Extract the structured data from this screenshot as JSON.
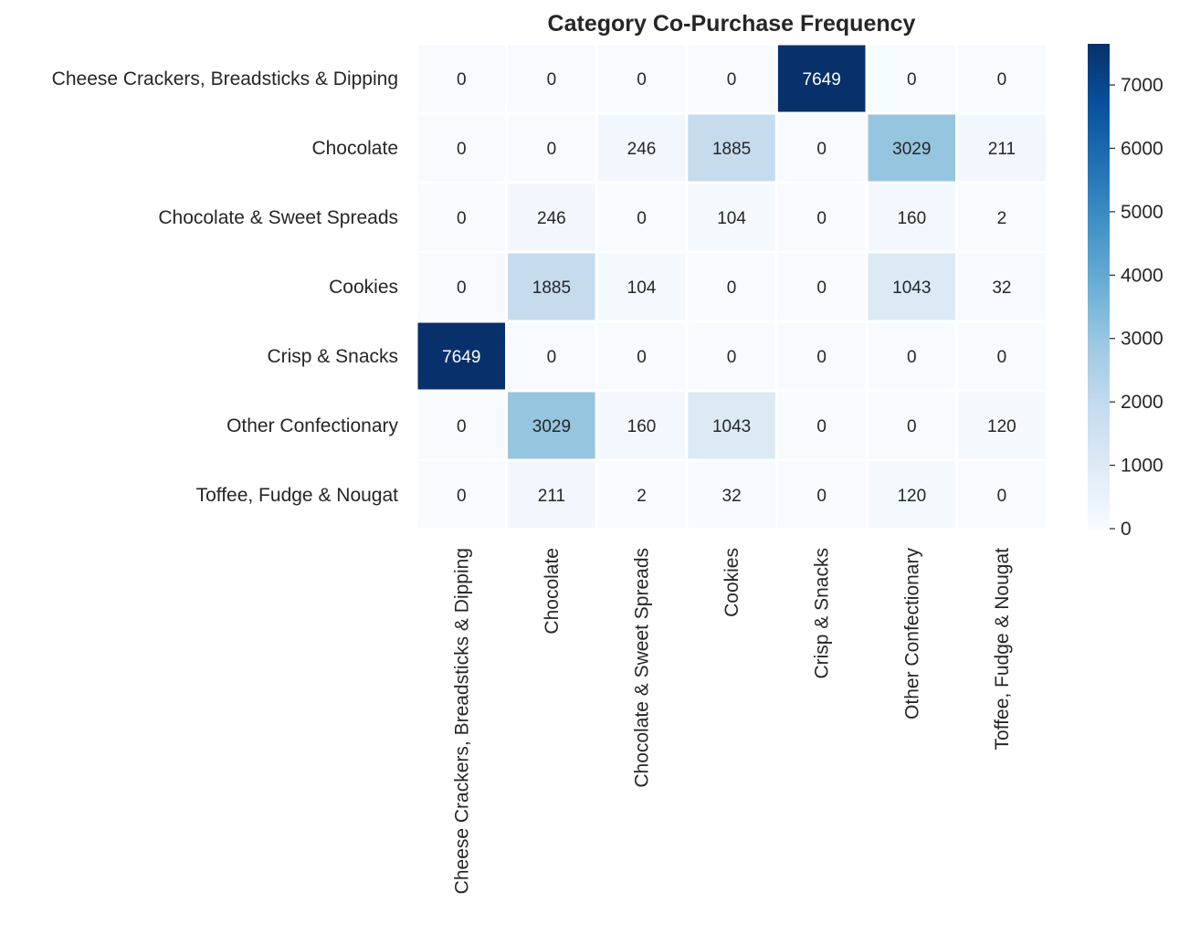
{
  "chart_data": {
    "type": "heatmap",
    "title": "Category Co-Purchase Frequency",
    "rows": [
      "Cheese Crackers, Breadsticks & Dipping",
      "Chocolate",
      "Chocolate & Sweet Spreads",
      "Cookies",
      "Crisp & Snacks",
      "Other Confectionary",
      "Toffee, Fudge & Nougat"
    ],
    "columns": [
      "Cheese Crackers, Breadsticks & Dipping",
      "Chocolate",
      "Chocolate & Sweet Spreads",
      "Cookies",
      "Crisp & Snacks",
      "Other Confectionary",
      "Toffee, Fudge & Nougat"
    ],
    "values": [
      [
        0,
        0,
        0,
        0,
        7649,
        0,
        0
      ],
      [
        0,
        0,
        246,
        1885,
        0,
        3029,
        211
      ],
      [
        0,
        246,
        0,
        104,
        0,
        160,
        2
      ],
      [
        0,
        1885,
        104,
        0,
        0,
        1043,
        32
      ],
      [
        7649,
        0,
        0,
        0,
        0,
        0,
        0
      ],
      [
        0,
        3029,
        160,
        1043,
        0,
        0,
        120
      ],
      [
        0,
        211,
        2,
        32,
        0,
        120,
        0
      ]
    ],
    "colormap": "Blues",
    "color_range": [
      0,
      7649
    ],
    "colorbar_ticks": [
      0,
      1000,
      2000,
      3000,
      4000,
      5000,
      6000,
      7000
    ],
    "annotations": true,
    "xlabel": "",
    "ylabel": ""
  }
}
